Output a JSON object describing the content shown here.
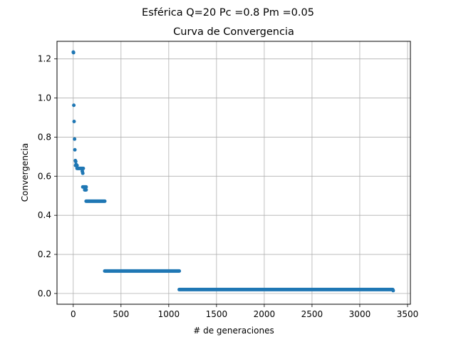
{
  "figure": {
    "suptitle": "Esférica Q=20 Pc =0.8 Pm =0.05"
  },
  "chart_data": {
    "type": "scatter",
    "title": "Curva de Convergencia",
    "xlabel": "# de generaciones",
    "ylabel": "Convergencia",
    "xlim": [
      -170,
      3530
    ],
    "ylim": [
      -0.055,
      1.29
    ],
    "xticks": [
      0,
      500,
      1000,
      1500,
      2000,
      2500,
      3000,
      3500
    ],
    "yticks": [
      0.0,
      0.2,
      0.4,
      0.6,
      0.8,
      1.0,
      1.2
    ],
    "xtick_labels": [
      "0",
      "500",
      "1000",
      "1500",
      "2000",
      "2500",
      "3000",
      "3500"
    ],
    "ytick_labels": [
      "0.0",
      "0.2",
      "0.4",
      "0.6",
      "0.8",
      "1.0",
      "1.2"
    ],
    "grid": true,
    "color": "#1f77b4",
    "isolated_points": [
      {
        "x": 1,
        "y": 1.235
      },
      {
        "x": 3,
        "y": 1.232
      },
      {
        "x": 6,
        "y": 0.963
      },
      {
        "x": 9,
        "y": 0.88
      },
      {
        "x": 14,
        "y": 0.79
      },
      {
        "x": 17,
        "y": 0.735
      },
      {
        "x": 22,
        "y": 0.68
      },
      {
        "x": 26,
        "y": 0.675
      },
      {
        "x": 30,
        "y": 0.66
      },
      {
        "x": 36,
        "y": 0.655
      },
      {
        "x": 95,
        "y": 0.625
      },
      {
        "x": 100,
        "y": 0.615
      },
      {
        "x": 3350,
        "y": 0.015
      }
    ],
    "plateaus": [
      {
        "x_start": 24,
        "x_end": 40,
        "y": 0.655
      },
      {
        "x_start": 40,
        "x_end": 105,
        "y": 0.64
      },
      {
        "x_start": 100,
        "x_end": 135,
        "y": 0.545
      },
      {
        "x_start": 120,
        "x_end": 135,
        "y": 0.53
      },
      {
        "x_start": 135,
        "x_end": 330,
        "y": 0.472
      },
      {
        "x_start": 330,
        "x_end": 1110,
        "y": 0.115
      },
      {
        "x_start": 1110,
        "x_end": 3345,
        "y": 0.02
      }
    ]
  }
}
